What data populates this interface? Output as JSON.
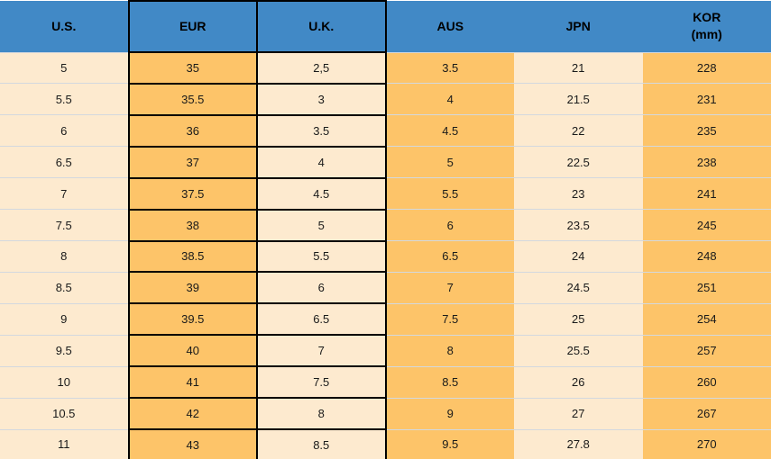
{
  "colors": {
    "header_bg": "#4189c6",
    "orange": "#fdc469",
    "cream": "#fdeacf",
    "black_border": "#000000",
    "light_border": "#d3d8de",
    "text_color": "#1a1a1a"
  },
  "chart_data": {
    "type": "table",
    "title": "",
    "columns": [
      {
        "key": "us",
        "label": "U.S."
      },
      {
        "key": "eur",
        "label": "EUR"
      },
      {
        "key": "uk",
        "label": "U.K."
      },
      {
        "key": "aus",
        "label": "AUS"
      },
      {
        "key": "jpn",
        "label": "JPN"
      },
      {
        "key": "kor",
        "label": "KOR\n(mm)"
      }
    ],
    "rows": [
      [
        "5",
        "35",
        "2,5",
        "3.5",
        "21",
        "228"
      ],
      [
        "5.5",
        "35.5",
        "3",
        "4",
        "21.5",
        "231"
      ],
      [
        "6",
        "36",
        "3.5",
        "4.5",
        "22",
        "235"
      ],
      [
        "6.5",
        "37",
        "4",
        "5",
        "22.5",
        "238"
      ],
      [
        "7",
        "37.5",
        "4.5",
        "5.5",
        "23",
        "241"
      ],
      [
        "7.5",
        "38",
        "5",
        "6",
        "23.5",
        "245"
      ],
      [
        "8",
        "38.5",
        "5.5",
        "6.5",
        "24",
        "248"
      ],
      [
        "8.5",
        "39",
        "6",
        "7",
        "24.5",
        "251"
      ],
      [
        "9",
        "39.5",
        "6.5",
        "7.5",
        "25",
        "254"
      ],
      [
        "9.5",
        "40",
        "7",
        "8",
        "25.5",
        "257"
      ],
      [
        "10",
        "41",
        "7.5",
        "8.5",
        "26",
        "260"
      ],
      [
        "10.5",
        "42",
        "8",
        "9",
        "27",
        "267"
      ],
      [
        "11",
        "43",
        "8.5",
        "9.5",
        "27.8",
        "270"
      ]
    ]
  }
}
